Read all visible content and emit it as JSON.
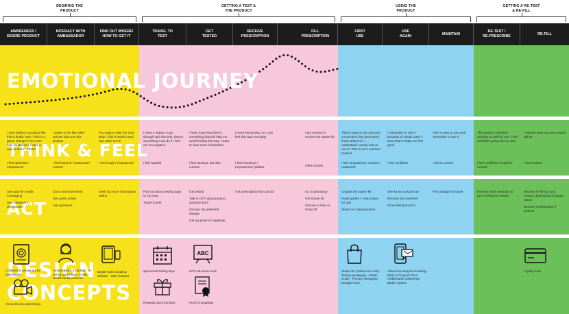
{
  "phases": [
    {
      "id": "desiring",
      "label": "DESIRING THE\nPRODUCT"
    },
    {
      "id": "test",
      "label": "GETTING A TEST &\nTHE PRODUCT"
    },
    {
      "id": "using",
      "label": "USING THE\nPRODUCT"
    },
    {
      "id": "retest",
      "label": "GETTING A RE-TEST\n& RE-FILL"
    }
  ],
  "stages": [
    "AWARENESS /\nDESIRE PRODUCT",
    "INTERACT WITH\nAMBASSADOR",
    "FIND OUT WHERE/\nHOW TO GET IT",
    "TRAVEL TO\nTEST",
    "GET\nTESTED",
    "RECEIVE\nPRESCRIPTION",
    "FILL\nPRESCRIPTION",
    "FIRST\nUSE",
    "USE\nAGAIN",
    "MAINTAIN",
    "RE-TEST /\nRE-PRESCRIBE",
    "RE-FILL"
  ],
  "colors": {
    "yellow": "#f7e21a",
    "pink": "#f6c8da",
    "blue": "#8fd3f2",
    "green": "#6cc05a",
    "black": "#1c1c1c"
  },
  "rows": {
    "emotional": "EMOTIONAL JOURNEY",
    "think": "THINK & FEEL",
    "act": "ACT",
    "design": "DESIGN\nCONCEPTS"
  },
  "think": [
    {
      "top": "I can't believe a product like this is finally here / This is a game changer / No more fear, treatment / I have a way to feel in control",
      "bottom": "I feel optimistic / empowered"
    },
    {
      "top": "I aspire to be like other women who use this product",
      "bottom": "I feel inspired / reassured / excited"
    },
    {
      "top": "I'm ready to take the next step / This is worth it and has value to me",
      "bottom": "I feel ready / empowered"
    },
    {
      "top": "I have a reason to go through with this test, there's something I can do if I find out I'm negative",
      "bottom": "I feel hopeful"
    },
    {
      "top": "I have hope that there's something that will help me avoid feeling this way. I want to hear more information.",
      "bottom": "I feel anxious, but also curious"
    },
    {
      "top": "I need this product so I can feel this way everyday",
      "bottom": "I feel victorious / empowered / jubilant"
    },
    {
      "top": "I am excited to receive the starter kit",
      "bottom": "I feel excited"
    },
    {
      "top": "This is easy to use and very convenient / My lover won't know what it is / I understand exactly how to use it / This is not a medical product",
      "bottom": "I feel empowered / excited / reassured"
    },
    {
      "top": "I remember to use it because of visual cues / I know that it helps me feel good",
      "bottom": "I feel confident"
    },
    {
      "top": "This is easy to use and I remember to use it",
      "bottom": "I feel in control"
    },
    {
      "top": "This product has been working so well for me / I feel confident going into my test",
      "bottom": "I feel confident / hopeful / excited"
    },
    {
      "top": "I wonder what my new reward will be",
      "bottom": "I feel excited"
    }
  ],
  "act": [
    [
      "See paid for media messaging",
      "See collateral in pharmacies"
    ],
    [
      "Go to informal events",
      "See posts online",
      "Ask questions"
    ],
    [
      "Seek out more information online"
    ],
    [
      "Find out about testing days in my area",
      "Travel to test"
    ],
    [
      "Get tested",
      "Talk to HCP about product and best form",
      "Choose my preferred dosage",
      "Get my proof of negativity"
    ],
    [
      "Get prescription from doctor"
    ],
    [
      "Go to pharmacy",
      "Get starter kit",
      "Choose to hide or show off"
    ],
    [
      "Unpack the starter kit",
      "Read guides + instructions for use",
      "Store it in relevant place"
    ],
    [
      "See kit as a visual cue",
      "Receive text reminder",
      "Show friend product"
    ],
    [
      "Pick dosage for travel"
    ],
    [
      "Receive SMS reminder to get re-fill and re-tested"
    ],
    [
      "Receive re-fill box and reward, depending on loyalty status",
      "Become Ambassador if desired"
    ]
  ],
  "concepts": [
    {
      "icon": "magazine-icon",
      "label": "Collateral in private doctor pharmacies"
    },
    {
      "icon": "ambassador-icon",
      "label": "Ambassadors, including: - In-person gatherings - toolkit - Social media presence"
    },
    {
      "icon": "phone-icon",
      "label": "Digital Tools including: - Website - SMS features"
    },
    {
      "icon": "film-icon",
      "label": "Above-the-line advertising"
    },
    {
      "icon": "calendar-icon",
      "label": "Sponsored testing days"
    },
    {
      "icon": "abc-board-icon",
      "label": "HCP education tools"
    },
    {
      "icon": "gift-icon",
      "label": "Rewards and incentives"
    },
    {
      "icon": "certificate-icon",
      "label": "Proof of negativity"
    },
    {
      "icon": "bag-icon",
      "label": "Starter Kit (Adherence Aids): - Tertiary packaging - Starter Guide - Primary Packaging - Dosage Form"
    },
    {
      "icon": "phone-message-icon",
      "label": "Adherence Support including: - Daily or Frequent Text - Ambassador Gatherings - Buddy System"
    },
    {
      "icon": "card-icon",
      "label": "Loyalty Card"
    }
  ]
}
